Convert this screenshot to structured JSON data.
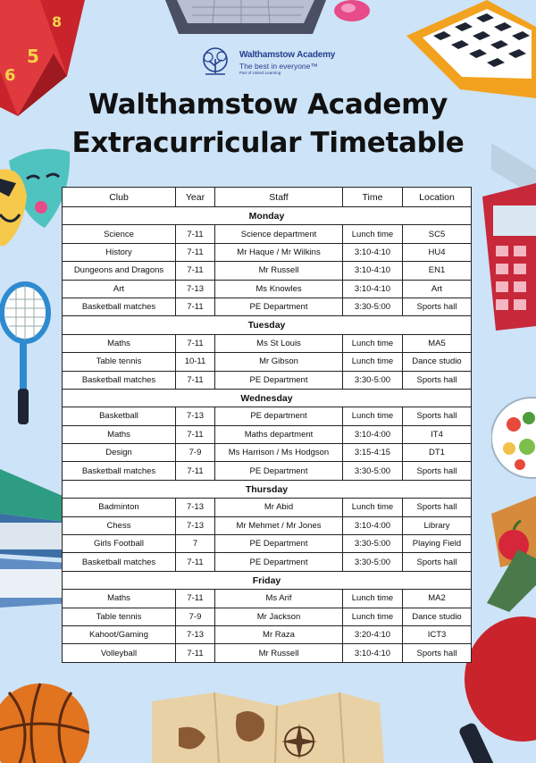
{
  "logo": {
    "name": "Walthamstow Academy",
    "tagline": "The best in everyone™",
    "sub": "Part of United Learning"
  },
  "title": {
    "line1": "Walthamstow Academy",
    "line2": "Extracurricular Timetable"
  },
  "table": {
    "headers": [
      "Club",
      "Year",
      "Staff",
      "Time",
      "Location"
    ],
    "days": [
      {
        "name": "Monday",
        "rows": [
          [
            "Science",
            "7-11",
            "Science department",
            "Lunch time",
            "SC5"
          ],
          [
            "History",
            "7-11",
            "Mr Haque / Mr Wilkins",
            "3:10-4:10",
            "HU4"
          ],
          [
            "Dungeons and Dragons",
            "7-11",
            "Mr Russell",
            "3:10-4:10",
            "EN1"
          ],
          [
            "Art",
            "7-13",
            "Ms Knowles",
            "3:10-4:10",
            "Art"
          ],
          [
            "Basketball matches",
            "7-11",
            "PE Department",
            "3:30-5:00",
            "Sports hall"
          ]
        ]
      },
      {
        "name": "Tuesday",
        "rows": [
          [
            "Maths",
            "7-11",
            "Ms St Louis",
            "Lunch time",
            "MA5"
          ],
          [
            "Table tennis",
            "10-11",
            "Mr Gibson",
            "Lunch time",
            "Dance studio"
          ],
          [
            "Basketball matches",
            "7-11",
            "PE Department",
            "3:30-5:00",
            "Sports hall"
          ]
        ]
      },
      {
        "name": "Wednesday",
        "rows": [
          [
            "Basketball",
            "7-13",
            "PE department",
            "Lunch time",
            "Sports hall"
          ],
          [
            "Maths",
            "7-11",
            "Maths department",
            "3:10-4:00",
            "IT4"
          ],
          [
            "Design",
            "7-9",
            "Ms Harrison / Ms Hodgson",
            "3:15-4:15",
            "DT1"
          ],
          [
            "Basketball matches",
            "7-11",
            "PE Department",
            "3:30-5:00",
            "Sports hall"
          ]
        ]
      },
      {
        "name": "Thursday",
        "rows": [
          [
            "Badminton",
            "7-13",
            "Mr Abid",
            "Lunch time",
            "Sports hall"
          ],
          [
            "Chess",
            "7-13",
            "Mr Mehmet / Mr Jones",
            "3:10-4:00",
            "Library"
          ],
          [
            "Girls Football",
            "7",
            "PE Department",
            "3:30-5:00",
            "Playing Field"
          ],
          [
            "Basketball matches",
            "7-11",
            "PE Department",
            "3:30-5:00",
            "Sports hall"
          ]
        ]
      },
      {
        "name": "Friday",
        "rows": [
          [
            "Maths",
            "7-11",
            "Ms Arif",
            "Lunch time",
            "MA2"
          ],
          [
            "Table tennis",
            "7-9",
            "Mr Jackson",
            "Lunch time",
            "Dance studio"
          ],
          [
            "Kahoot/Gaming",
            "7-13",
            "Mr Raza",
            "3:20-4:10",
            "ICT3"
          ],
          [
            "Volleyball",
            "7-11",
            "Mr Russell",
            "3:10-4:10",
            "Sports hall"
          ]
        ]
      }
    ]
  }
}
